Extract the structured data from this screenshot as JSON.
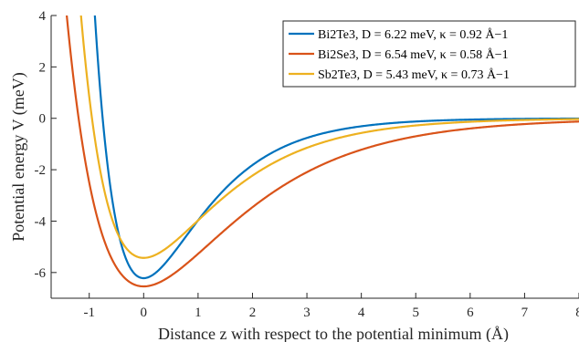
{
  "chart_data": {
    "type": "line",
    "xlabel": "Distance z with respect to the potential minimum (Å)",
    "ylabel": "Potential energy V (meV)",
    "xlim": [
      -1.7,
      8
    ],
    "ylim": [
      -7,
      4
    ],
    "xticks": [
      -1,
      0,
      1,
      2,
      3,
      4,
      5,
      6,
      7,
      8
    ],
    "yticks": [
      -6,
      -4,
      -2,
      0,
      2,
      4
    ],
    "grid": false,
    "legend_position": "top-right",
    "series": [
      {
        "name": "Bi2Te3",
        "legend": "Bi2Te3, D = 6.22 meV, κ = 0.92 Å−1",
        "D": 6.22,
        "kappa": 0.92,
        "color": "#0072BD"
      },
      {
        "name": "Bi2Se3",
        "legend": "Bi2Se3, D = 6.54 meV, κ = 0.58 Å−1",
        "D": 6.54,
        "kappa": 0.58,
        "color": "#D95319"
      },
      {
        "name": "Sb2Te3",
        "legend": "Sb2Te3, D = 5.43 meV, κ = 0.73 Å−1",
        "D": 5.43,
        "kappa": 0.73,
        "color": "#EDB120"
      }
    ]
  }
}
